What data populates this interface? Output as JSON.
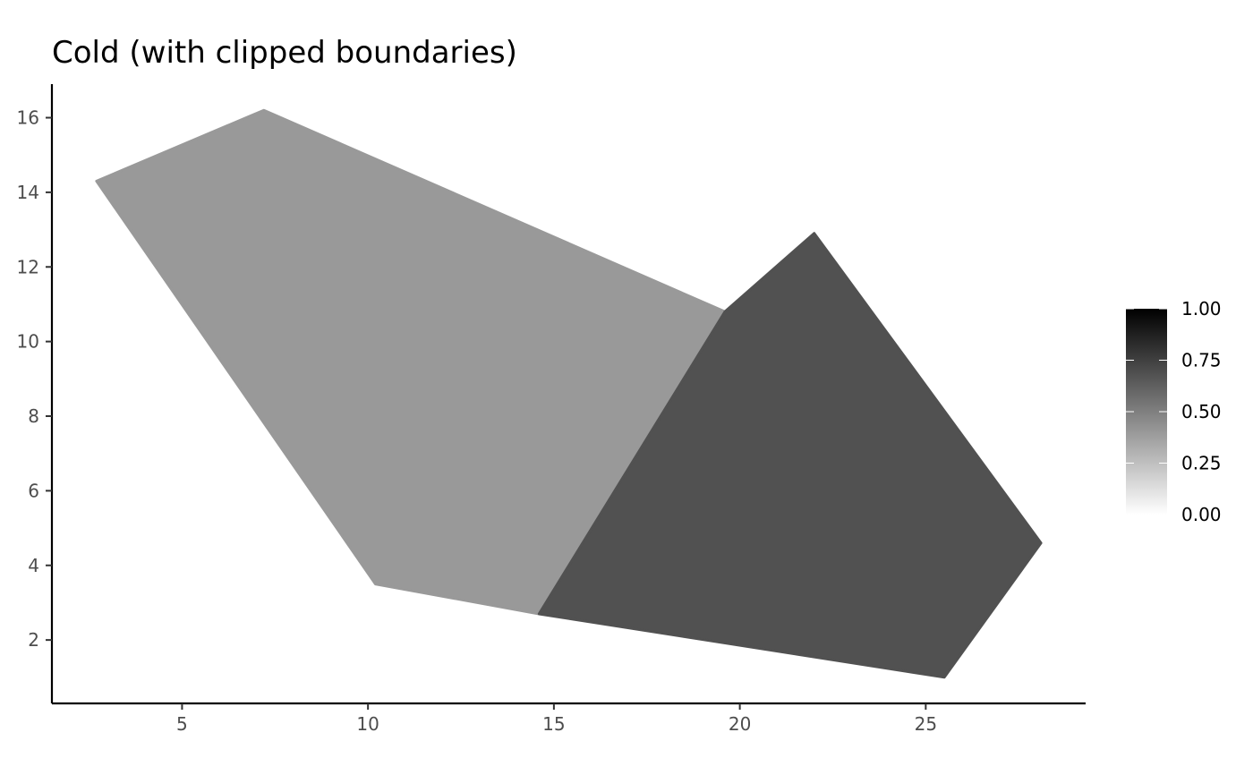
{
  "chart_data": {
    "type": "polygon",
    "title": "Cold (with clipped boundaries)",
    "xlabel": "",
    "ylabel": "",
    "xlim": [
      1.5,
      29.3
    ],
    "ylim": [
      0.3,
      16.9
    ],
    "x_ticks": [
      5,
      10,
      15,
      20,
      25
    ],
    "y_ticks": [
      2,
      4,
      6,
      8,
      10,
      12,
      14,
      16
    ],
    "grid": false,
    "polygons": [
      {
        "fill_value": 0.35,
        "color": "#999999",
        "points": [
          [
            2.7,
            14.3
          ],
          [
            7.2,
            16.2
          ],
          [
            19.6,
            10.8
          ],
          [
            14.6,
            2.7
          ],
          [
            10.2,
            3.5
          ]
        ]
      },
      {
        "fill_value": 0.68,
        "color": "#515151",
        "points": [
          [
            19.6,
            10.8
          ],
          [
            22.0,
            12.9
          ],
          [
            28.1,
            4.6
          ],
          [
            25.5,
            1.0
          ],
          [
            14.6,
            2.7
          ]
        ]
      }
    ],
    "legend": {
      "position": "right",
      "type": "colorbar",
      "range": [
        0,
        1
      ],
      "ticks": [
        "0.00",
        "0.25",
        "0.50",
        "0.75",
        "1.00"
      ],
      "color_low": "#ffffff",
      "color_high": "#000000"
    }
  }
}
